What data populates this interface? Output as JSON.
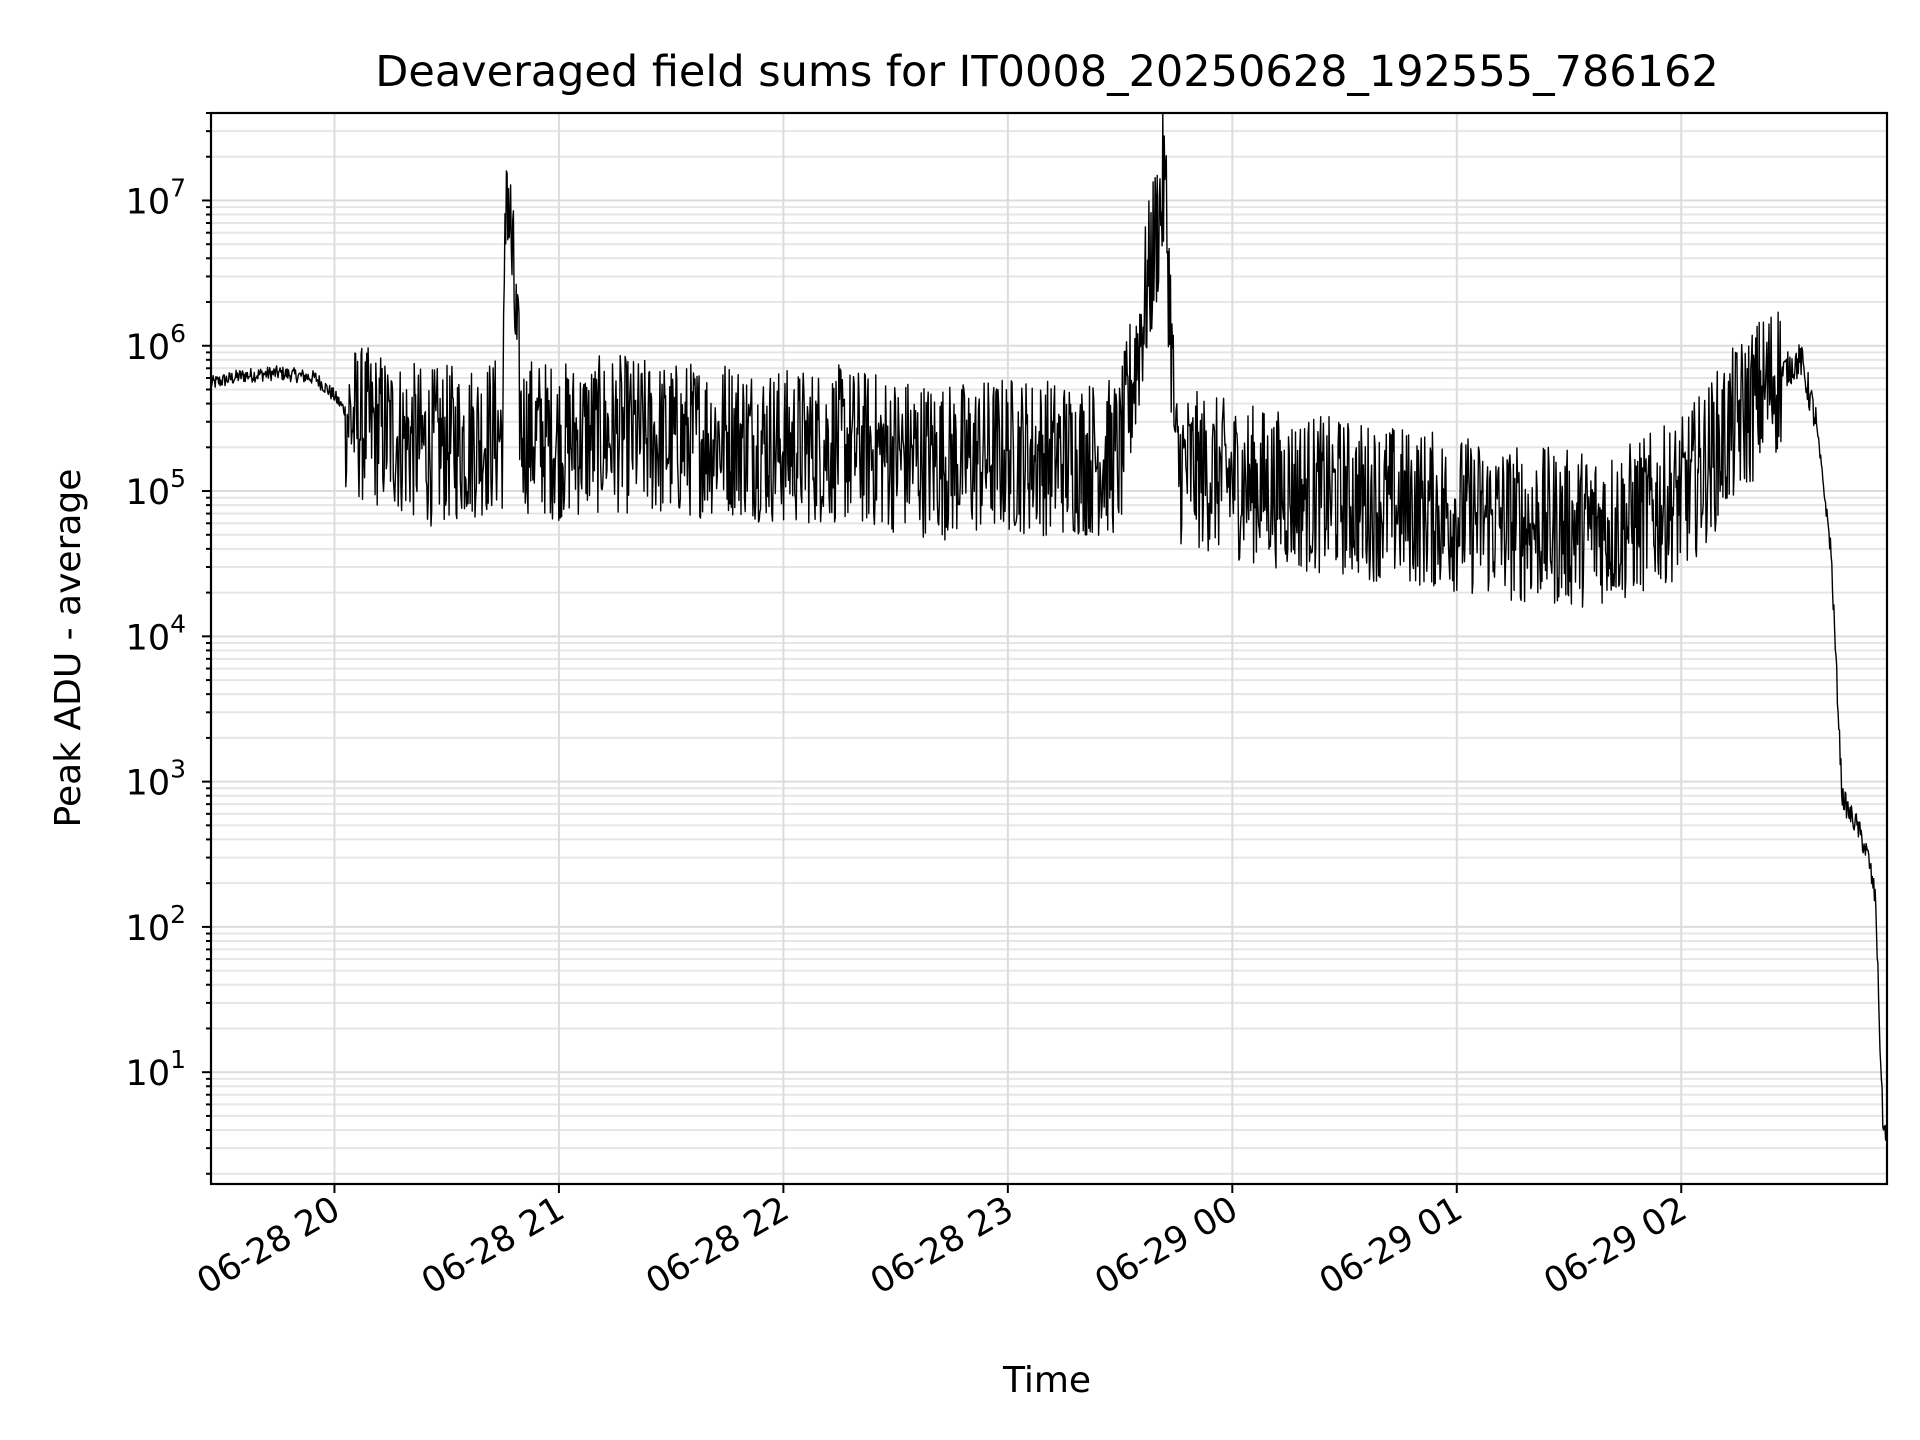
{
  "chart_data": {
    "type": "line",
    "title": "Deaveraged field sums for IT0008_20250628_192555_786162",
    "xlabel": "Time",
    "ylabel": "Peak ADU - average",
    "yscale": "log",
    "grid": true,
    "x_tick_labels": [
      "06-28 20",
      "06-28 21",
      "06-28 22",
      "06-28 23",
      "06-29 00",
      "06-29 01",
      "06-29 02"
    ],
    "y_tick_labels": [
      {
        "base": "10",
        "exp": "1"
      },
      {
        "base": "10",
        "exp": "2"
      },
      {
        "base": "10",
        "exp": "3"
      },
      {
        "base": "10",
        "exp": "4"
      },
      {
        "base": "10",
        "exp": "5"
      },
      {
        "base": "10",
        "exp": "6"
      },
      {
        "base": "10",
        "exp": "7"
      }
    ],
    "xlim": [
      "2025-06-28 19:27",
      "2025-06-29 02:55"
    ],
    "ylim": [
      1.7,
      40000000
    ],
    "line_color": "#000000",
    "series": [
      {
        "x": [
          "2025-06-28 19:27",
          "2025-06-28 19:35",
          "2025-06-28 19:45",
          "2025-06-28 19:55",
          "2025-06-28 20:00",
          "2025-06-28 20:05",
          "2025-06-28 20:15",
          "2025-06-28 20:25",
          "2025-06-28 20:35",
          "2025-06-28 20:45",
          "2025-06-28 20:46",
          "2025-06-28 20:50",
          "2025-06-28 21:00",
          "2025-06-28 21:15",
          "2025-06-28 21:30",
          "2025-06-28 21:45",
          "2025-06-28 22:00",
          "2025-06-28 22:15",
          "2025-06-28 22:30",
          "2025-06-28 22:45",
          "2025-06-28 23:00",
          "2025-06-28 23:15",
          "2025-06-28 23:30",
          "2025-06-28 23:42",
          "2025-06-28 23:45",
          "2025-06-29 00:00",
          "2025-06-29 00:15",
          "2025-06-29 00:30",
          "2025-06-29 00:45",
          "2025-06-29 01:00",
          "2025-06-29 01:15",
          "2025-06-29 01:30",
          "2025-06-29 01:45",
          "2025-06-29 02:00",
          "2025-06-29 02:15",
          "2025-06-29 02:25",
          "2025-06-29 02:32",
          "2025-06-29 02:36",
          "2025-06-29 02:40",
          "2025-06-29 02:43",
          "2025-06-29 02:45",
          "2025-06-29 02:47",
          "2025-06-29 02:50",
          "2025-06-29 02:52",
          "2025-06-29 02:53",
          "2025-06-29 02:54",
          "2025-06-29 02:55"
        ],
        "y": [
          550000,
          620000,
          650000,
          600000,
          450000,
          300000,
          250000,
          200000,
          220000,
          250000,
          19000000,
          250000,
          220000,
          250000,
          220000,
          240000,
          200000,
          210000,
          180000,
          160000,
          180000,
          170000,
          170000,
          14000000,
          150000,
          120000,
          100000,
          90000,
          80000,
          70000,
          60000,
          55000,
          60000,
          90000,
          300000,
          600000,
          800000,
          300000,
          40000,
          800,
          600,
          500,
          300,
          150,
          20,
          4,
          4
        ]
      }
    ]
  }
}
